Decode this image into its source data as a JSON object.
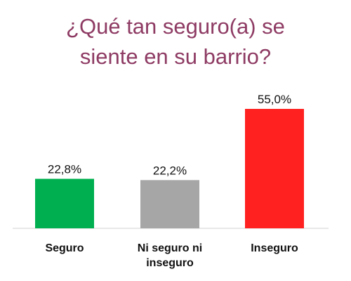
{
  "chart_data": {
    "type": "bar",
    "title": [
      "¿Qué tan seguro(a) se",
      "siente en su barrio?"
    ],
    "categories": [
      [
        "Seguro"
      ],
      [
        "Ni seguro ni",
        "inseguro"
      ],
      [
        "Inseguro"
      ]
    ],
    "values": [
      22.8,
      22.2,
      55.0
    ],
    "value_labels": [
      "22,8%",
      "22,2%",
      "55,0%"
    ],
    "colors": [
      "#00b050",
      "#a6a6a6",
      "#ff2020"
    ],
    "ylim": [
      0,
      60
    ],
    "grid": false,
    "legend": "none"
  }
}
